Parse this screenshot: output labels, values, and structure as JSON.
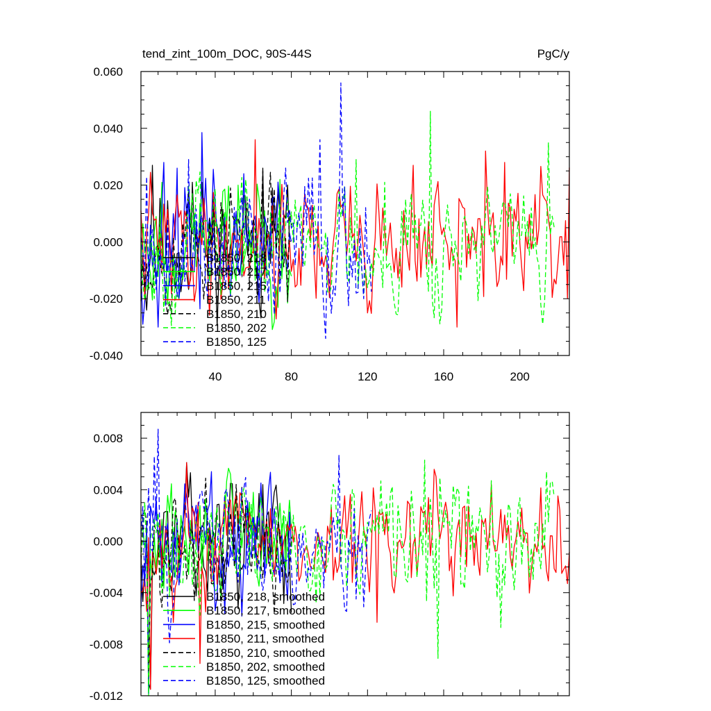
{
  "colors": {
    "black": "#000000",
    "green": "#00ff00",
    "blue": "#0000ff",
    "red": "#ff0000"
  },
  "chart_data": [
    {
      "type": "line",
      "title": "tend_zint_100m_DOC, 90S-44S",
      "right_title": "PgC/y",
      "xlabel": "",
      "ylabel": "",
      "xlim": [
        1,
        226
      ],
      "ylim": [
        -0.04,
        0.06
      ],
      "xticks": [
        40,
        80,
        120,
        160,
        200
      ],
      "yticks": [
        -0.04,
        -0.02,
        0.0,
        0.02,
        0.04,
        0.06
      ],
      "ytick_labels": [
        "-0.040",
        "-0.020",
        "0.000",
        "0.020",
        "0.040",
        "0.060"
      ],
      "xtick_labels": [
        "40",
        "80",
        "120",
        "160",
        "200"
      ],
      "legend_position": "lower-left",
      "series": [
        {
          "name": "B1850, 218",
          "color_key": "black",
          "dash": "solid",
          "length": 80,
          "amp": 0.01,
          "bias": -0.002,
          "seed": 11,
          "peaks": [
            [
              7,
              0.027
            ],
            [
              28,
              0.021
            ],
            [
              65,
              0.026
            ],
            [
              70,
              0.019
            ],
            [
              4,
              -0.024
            ]
          ]
        },
        {
          "name": "B1850, 217",
          "color_key": "green",
          "dash": "solid",
          "length": 80,
          "amp": 0.0095,
          "bias": -0.0015,
          "seed": 23,
          "peaks": [
            [
              12,
              0.021
            ],
            [
              52,
              0.02
            ],
            [
              74,
              0.022
            ],
            [
              15,
              -0.022
            ]
          ]
        },
        {
          "name": "B1850, 215",
          "color_key": "blue",
          "dash": "solid",
          "length": 80,
          "amp": 0.0105,
          "bias": -0.001,
          "seed": 37,
          "peaks": [
            [
              33,
              0.0385
            ],
            [
              13,
              0.028
            ],
            [
              20,
              0.026
            ],
            [
              10,
              -0.03
            ],
            [
              55,
              0.024
            ]
          ]
        },
        {
          "name": "B1850, 211",
          "color_key": "red",
          "dash": "solid",
          "length": 226,
          "amp": 0.01,
          "bias": -0.002,
          "seed": 41,
          "peaks": [
            [
              61,
              0.036
            ],
            [
              182,
              0.032
            ],
            [
              192,
              0.028
            ],
            [
              167,
              -0.03
            ],
            [
              225,
              -0.02
            ],
            [
              144,
              0.027
            ]
          ]
        },
        {
          "name": "B1850, 210",
          "color_key": "black",
          "dash": "dash",
          "length": 80,
          "amp": 0.0095,
          "bias": -0.001,
          "seed": 53,
          "peaks": [
            [
              65,
              0.025
            ],
            [
              78,
              -0.021
            ],
            [
              48,
              0.019
            ]
          ]
        },
        {
          "name": "B1850, 202",
          "color_key": "green",
          "dash": "dash",
          "length": 218,
          "amp": 0.01,
          "bias": -0.0015,
          "seed": 67,
          "peaks": [
            [
              153,
              0.046
            ],
            [
              215,
              0.035
            ],
            [
              114,
              0.029
            ],
            [
              212,
              -0.029
            ],
            [
              129,
              0.021
            ]
          ]
        },
        {
          "name": "B1850, 125",
          "color_key": "blue",
          "dash": "dash",
          "length": 122,
          "amp": 0.0105,
          "bias": -0.001,
          "seed": 79,
          "peaks": [
            [
              106,
              0.056
            ],
            [
              98,
              -0.034
            ],
            [
              95,
              0.036
            ],
            [
              4,
              0.023
            ],
            [
              26,
              0.029
            ],
            [
              118,
              -0.02
            ]
          ]
        }
      ]
    },
    {
      "type": "line",
      "title": "",
      "xlabel": "",
      "ylabel": "",
      "xlim": [
        1,
        226
      ],
      "ylim": [
        -0.012,
        0.01
      ],
      "xticks": [
        40,
        80,
        120,
        160,
        200
      ],
      "yticks": [
        -0.012,
        -0.008,
        -0.004,
        0.0,
        0.004,
        0.008
      ],
      "ytick_labels": [
        "-0.012",
        "-0.008",
        "-0.004",
        "0.000",
        "0.004",
        "0.008"
      ],
      "legend_position": "lower-left",
      "series": [
        {
          "name": "B1850, 218, smoothed",
          "color_key": "black",
          "dash": "solid",
          "length": 80,
          "amp": 0.002,
          "bias": -0.0008,
          "seed": 13,
          "peaks": [
            [
              5,
              -0.011
            ],
            [
              6,
              -0.0115
            ],
            [
              48,
              0.0045
            ],
            [
              65,
              0.0044
            ]
          ]
        },
        {
          "name": "B1850, 217, smoothed",
          "color_key": "green",
          "dash": "solid",
          "length": 80,
          "amp": 0.0019,
          "bias": -0.0006,
          "seed": 29,
          "peaks": [
            [
              5,
              -0.012
            ],
            [
              12,
              0.0017
            ],
            [
              60,
              0.0038
            ]
          ]
        },
        {
          "name": "B1850, 215, smoothed",
          "color_key": "blue",
          "dash": "solid",
          "length": 80,
          "amp": 0.0021,
          "bias": -0.0005,
          "seed": 31,
          "peaks": [
            [
              5,
              -0.0118
            ],
            [
              38,
              0.0054
            ],
            [
              78,
              -0.0046
            ]
          ]
        },
        {
          "name": "B1850, 211, smoothed",
          "color_key": "red",
          "dash": "solid",
          "length": 226,
          "amp": 0.002,
          "bias": -0.0008,
          "seed": 43,
          "peaks": [
            [
              6,
              -0.0115
            ],
            [
              25,
              0.0061
            ],
            [
              32,
              -0.0095
            ],
            [
              125,
              -0.0063
            ],
            [
              185,
              0.0044
            ],
            [
              222,
              -0.0025
            ]
          ]
        },
        {
          "name": "B1850, 210, smoothed",
          "color_key": "black",
          "dash": "dash",
          "length": 80,
          "amp": 0.0019,
          "bias": -0.0006,
          "seed": 59,
          "peaks": [
            [
              5,
              -0.0105
            ],
            [
              35,
              0.0049
            ],
            [
              78,
              -0.0032
            ]
          ]
        },
        {
          "name": "B1850, 202, smoothed",
          "color_key": "green",
          "dash": "dash",
          "length": 218,
          "amp": 0.0021,
          "bias": -0.0006,
          "seed": 71,
          "peaks": [
            [
              5,
              -0.0118
            ],
            [
              150,
              0.0063
            ],
            [
              157,
              -0.0091
            ],
            [
              214,
              0.0054
            ],
            [
              185,
              0.0047
            ],
            [
              190,
              -0.0067
            ]
          ]
        },
        {
          "name": "B1850, 125, smoothed",
          "color_key": "blue",
          "dash": "dash",
          "length": 122,
          "amp": 0.0021,
          "bias": -0.0004,
          "seed": 83,
          "peaks": [
            [
              8,
              0.0066
            ],
            [
              10,
              0.0087
            ],
            [
              6,
              -0.0005
            ],
            [
              105,
              0.0067
            ],
            [
              118,
              -0.0051
            ],
            [
              3,
              -0.0035
            ]
          ]
        }
      ]
    }
  ]
}
